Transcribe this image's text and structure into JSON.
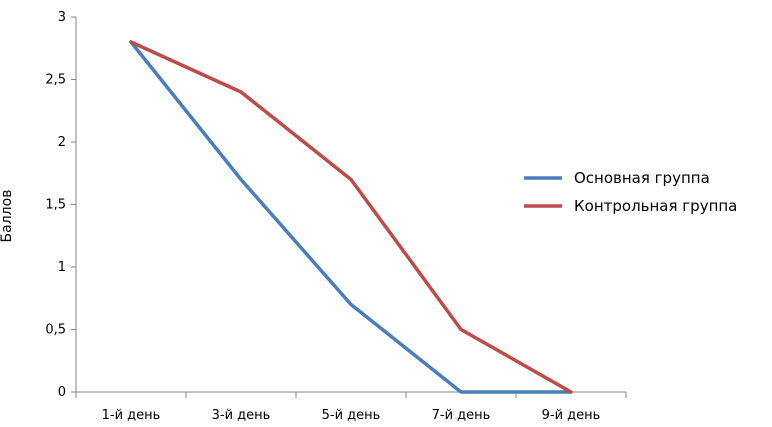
{
  "chart_data": {
    "type": "line",
    "title": "",
    "xlabel": "",
    "ylabel": "Баллов",
    "categories": [
      "1-й день",
      "3-й день",
      "5-й день",
      "7-й день",
      "9-й день"
    ],
    "ylim": [
      0,
      3
    ],
    "yticks": [
      "0",
      "0,5",
      "1",
      "1,5",
      "2",
      "2,5",
      "3"
    ],
    "grid": false,
    "legend_position": "right",
    "series": [
      {
        "name": "Основная группа",
        "values": [
          2.8,
          1.7,
          0.7,
          0,
          0
        ],
        "color": "#4a7ebb"
      },
      {
        "name": "Контрольная группа",
        "values": [
          2.8,
          2.4,
          1.7,
          0.5,
          0
        ],
        "color": "#be4b48"
      }
    ]
  }
}
